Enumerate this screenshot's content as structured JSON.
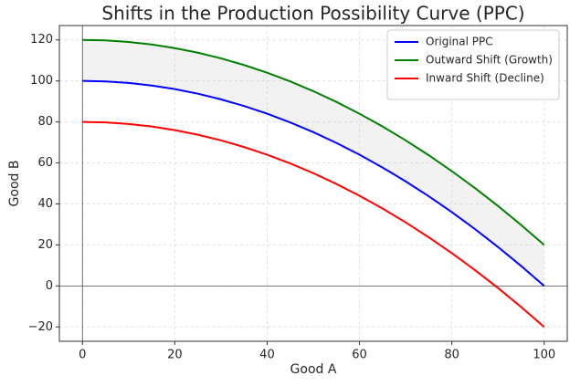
{
  "chart_data": {
    "type": "line",
    "title": "Shifts in the Production Possibility Curve (PPC)",
    "x_label": "Good A",
    "y_label": "Good B",
    "x": [
      0,
      5,
      10,
      15,
      20,
      25,
      30,
      35,
      40,
      45,
      50,
      55,
      60,
      65,
      70,
      75,
      80,
      85,
      90,
      95,
      100
    ],
    "series": [
      {
        "name": "Original PPC",
        "color": "#0000ff",
        "values": [
          100,
          99.75,
          99,
          97.75,
          96,
          93.75,
          91,
          87.75,
          84,
          79.75,
          75,
          69.75,
          64,
          57.75,
          51,
          43.75,
          36,
          27.75,
          19,
          9.75,
          0
        ]
      },
      {
        "name": "Outward Shift (Growth)",
        "color": "#008000",
        "values": [
          120,
          119.75,
          119,
          117.75,
          116,
          113.75,
          111,
          107.75,
          104,
          99.75,
          95,
          89.75,
          84,
          77.75,
          71,
          63.75,
          56,
          47.75,
          39,
          29.75,
          20
        ]
      },
      {
        "name": "Inward Shift (Decline)",
        "color": "#ff0000",
        "values": [
          80,
          79.75,
          79,
          77.75,
          76,
          73.75,
          71,
          67.75,
          64,
          59.75,
          55,
          49.75,
          44,
          37.75,
          31,
          23.75,
          16,
          7.75,
          -1,
          -10.25,
          -20
        ]
      }
    ],
    "fill_between": {
      "color": "#d3d3d3"
    },
    "xlim": [
      -5,
      105
    ],
    "ylim": [
      -27,
      127
    ],
    "xticks": [
      0,
      20,
      40,
      60,
      80,
      100
    ],
    "yticks": [
      {
        "value": -20,
        "label": "−20"
      },
      0,
      20,
      40,
      60,
      80,
      100,
      120
    ],
    "grid": true,
    "legend": "upper right"
  }
}
